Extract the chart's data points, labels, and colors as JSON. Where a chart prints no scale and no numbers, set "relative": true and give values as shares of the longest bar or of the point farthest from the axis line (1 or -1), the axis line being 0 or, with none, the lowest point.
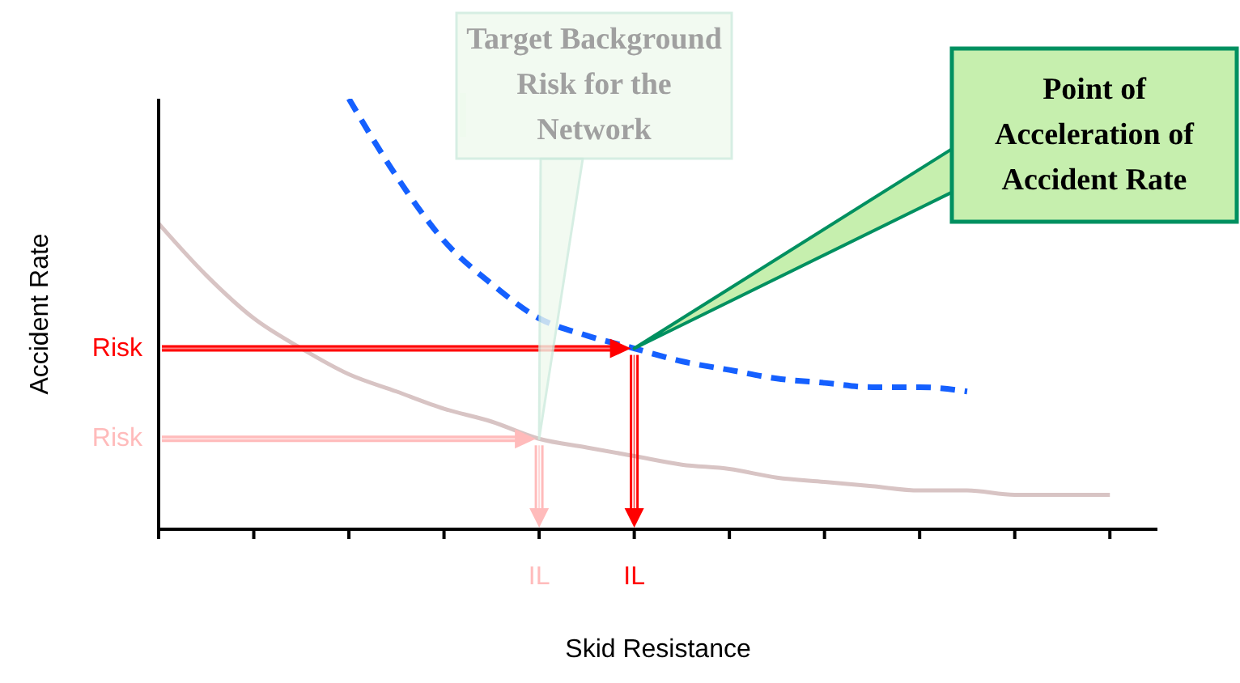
{
  "chart_data": {
    "type": "line",
    "relative": true,
    "xlabel": "Skid Resistance",
    "ylabel": "Accident Rate",
    "categories": [
      null,
      null,
      null,
      null,
      null,
      null,
      null,
      null,
      null,
      null,
      null,
      null,
      null,
      null,
      null,
      null,
      null,
      null,
      null,
      null,
      null
    ],
    "series": [
      {
        "color": "#d8c4c4",
        "line_style": "solid",
        "values": [
          0.71,
          0.59,
          0.49,
          0.42,
          0.36,
          0.32,
          0.28,
          0.25,
          0.21,
          0.19,
          0.17,
          0.15,
          0.14,
          0.12,
          0.11,
          0.1,
          0.09,
          0.09,
          0.08,
          0.08,
          0.08
        ]
      },
      {
        "color": "#1560ff",
        "line_style": "dashed",
        "values": [
          null,
          null,
          null,
          null,
          1.0,
          0.82,
          0.67,
          0.57,
          0.49,
          0.45,
          0.42,
          0.39,
          0.37,
          0.35,
          0.34,
          0.33,
          0.33,
          0.32,
          null,
          null,
          null
        ]
      }
    ],
    "ref_lines": [
      {
        "axis": "y",
        "value": 0.21,
        "label": "Risk",
        "color": "#ffbbbb"
      },
      {
        "axis": "y",
        "value": 0.42,
        "label": "Risk",
        "color": "#ff0000"
      }
    ],
    "annotations": [
      "Target Background Risk for the Network",
      "Point of Acceleration of Accident Rate",
      "IL",
      "IL"
    ]
  }
}
